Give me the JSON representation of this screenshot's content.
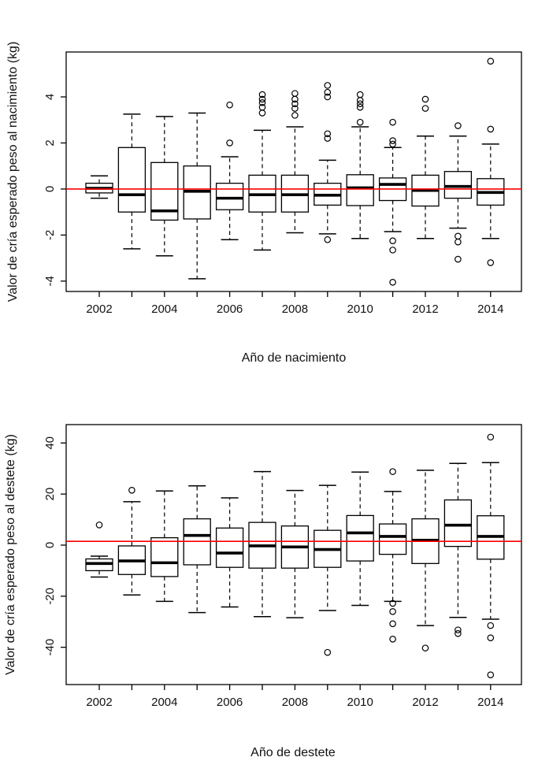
{
  "page": {
    "background": "#ffffff",
    "axis_color": "#000000",
    "box_fill": "#ffffff"
  },
  "chart_data": [
    {
      "type": "boxplot",
      "panel": "top",
      "title": "",
      "xlabel": "Año de nacimiento",
      "ylabel": "Valor de cría esperado peso al nacimiento (kg)",
      "ylim": [
        -4.45,
        5.95
      ],
      "yticks": [
        -4,
        -2,
        0,
        2,
        4
      ],
      "xtick_labeled_years": [
        2002,
        2004,
        2006,
        2008,
        2010,
        2012,
        2014
      ],
      "reference_line": 0,
      "reference_color": "#ff0000",
      "grid": false,
      "boxes": [
        {
          "year": 2002,
          "low": -0.4,
          "q1": -0.17,
          "median": 0.03,
          "q3": 0.25,
          "high": 0.57,
          "outliers": []
        },
        {
          "year": 2003,
          "low": -2.6,
          "q1": -1.0,
          "median": -0.25,
          "q3": 1.8,
          "high": 3.25,
          "outliers": []
        },
        {
          "year": 2004,
          "low": -2.9,
          "q1": -1.35,
          "median": -0.95,
          "q3": 1.15,
          "high": 3.15,
          "outliers": []
        },
        {
          "year": 2005,
          "low": -3.9,
          "q1": -1.3,
          "median": -0.1,
          "q3": 1.0,
          "high": 3.3,
          "outliers": []
        },
        {
          "year": 2006,
          "low": -2.2,
          "q1": -0.9,
          "median": -0.4,
          "q3": 0.25,
          "high": 1.4,
          "outliers": [
            2.0,
            3.65
          ]
        },
        {
          "year": 2007,
          "low": -2.65,
          "q1": -1.0,
          "median": -0.25,
          "q3": 0.6,
          "high": 2.55,
          "outliers": [
            3.3,
            3.55,
            3.75,
            3.9,
            4.1
          ]
        },
        {
          "year": 2008,
          "low": -1.9,
          "q1": -1.0,
          "median": -0.25,
          "q3": 0.6,
          "high": 2.7,
          "outliers": [
            3.2,
            3.5,
            3.7,
            3.9,
            4.15
          ]
        },
        {
          "year": 2009,
          "low": -1.95,
          "q1": -0.7,
          "median": -0.27,
          "q3": 0.25,
          "high": 1.25,
          "outliers": [
            -2.2,
            2.2,
            2.4,
            4.0,
            4.2,
            4.5
          ]
        },
        {
          "year": 2010,
          "low": -2.15,
          "q1": -0.72,
          "median": 0.05,
          "q3": 0.62,
          "high": 2.7,
          "outliers": [
            2.9,
            3.55,
            3.7,
            3.85,
            4.1
          ]
        },
        {
          "year": 2011,
          "low": -1.85,
          "q1": -0.5,
          "median": 0.2,
          "q3": 0.48,
          "high": 1.8,
          "outliers": [
            -4.05,
            -2.65,
            -2.25,
            1.95,
            2.1,
            2.9
          ]
        },
        {
          "year": 2012,
          "low": -2.15,
          "q1": -0.74,
          "median": -0.06,
          "q3": 0.6,
          "high": 2.3,
          "outliers": [
            3.5,
            3.9
          ]
        },
        {
          "year": 2013,
          "low": -1.7,
          "q1": -0.4,
          "median": 0.11,
          "q3": 0.76,
          "high": 2.3,
          "outliers": [
            -3.05,
            -2.3,
            -2.05,
            2.75
          ]
        },
        {
          "year": 2014,
          "low": -2.15,
          "q1": -0.7,
          "median": -0.15,
          "q3": 0.45,
          "high": 1.95,
          "outliers": [
            -3.2,
            2.6,
            5.55
          ]
        }
      ]
    },
    {
      "type": "boxplot",
      "panel": "bottom",
      "title": "",
      "xlabel": "Año de destete",
      "ylabel": "Valor de cría esperado peso al destete (kg)",
      "ylim": [
        -54.6,
        47.2
      ],
      "yticks": [
        -40,
        -20,
        0,
        20,
        40
      ],
      "xtick_labeled_years": [
        2002,
        2004,
        2006,
        2008,
        2010,
        2012,
        2014
      ],
      "reference_line": 1.5,
      "reference_color": "#ff0000",
      "grid": false,
      "boxes": [
        {
          "year": 2002,
          "low": -12.5,
          "q1": -10.0,
          "median": -7.2,
          "q3": -5.4,
          "high": -4.3,
          "outliers": [
            7.9
          ]
        },
        {
          "year": 2003,
          "low": -19.5,
          "q1": -11.5,
          "median": -6.2,
          "q3": -0.3,
          "high": 17.0,
          "outliers": [
            21.5
          ]
        },
        {
          "year": 2004,
          "low": -22.0,
          "q1": -12.3,
          "median": -6.9,
          "q3": 2.9,
          "high": 21.2,
          "outliers": []
        },
        {
          "year": 2005,
          "low": -26.4,
          "q1": -7.7,
          "median": 3.8,
          "q3": 10.3,
          "high": 23.2,
          "outliers": []
        },
        {
          "year": 2006,
          "low": -24.2,
          "q1": -8.7,
          "median": -3.1,
          "q3": 6.7,
          "high": 18.5,
          "outliers": []
        },
        {
          "year": 2007,
          "low": -28.0,
          "q1": -9.0,
          "median": -0.3,
          "q3": 8.9,
          "high": 28.8,
          "outliers": []
        },
        {
          "year": 2008,
          "low": -28.4,
          "q1": -9.0,
          "median": -0.7,
          "q3": 7.5,
          "high": 21.4,
          "outliers": []
        },
        {
          "year": 2009,
          "low": -25.6,
          "q1": -8.7,
          "median": -1.7,
          "q3": 5.8,
          "high": 23.4,
          "outliers": [
            -42.0
          ]
        },
        {
          "year": 2010,
          "low": -23.6,
          "q1": -6.2,
          "median": 4.8,
          "q3": 11.6,
          "high": 28.6,
          "outliers": []
        },
        {
          "year": 2011,
          "low": -22.0,
          "q1": -3.6,
          "median": 3.4,
          "q3": 8.3,
          "high": 21.0,
          "outliers": [
            -36.8,
            -30.8,
            -26.0,
            -22.8,
            28.8
          ]
        },
        {
          "year": 2012,
          "low": -31.5,
          "q1": -7.2,
          "median": 1.9,
          "q3": 10.3,
          "high": 29.3,
          "outliers": [
            -40.3
          ]
        },
        {
          "year": 2013,
          "low": -28.3,
          "q1": -0.5,
          "median": 7.8,
          "q3": 17.7,
          "high": 32.0,
          "outliers": [
            -34.6,
            -33.2
          ]
        },
        {
          "year": 2014,
          "low": -29.0,
          "q1": -5.5,
          "median": 3.4,
          "q3": 11.5,
          "high": 32.3,
          "outliers": [
            -50.8,
            -36.3,
            -31.5,
            42.3
          ]
        }
      ]
    }
  ]
}
